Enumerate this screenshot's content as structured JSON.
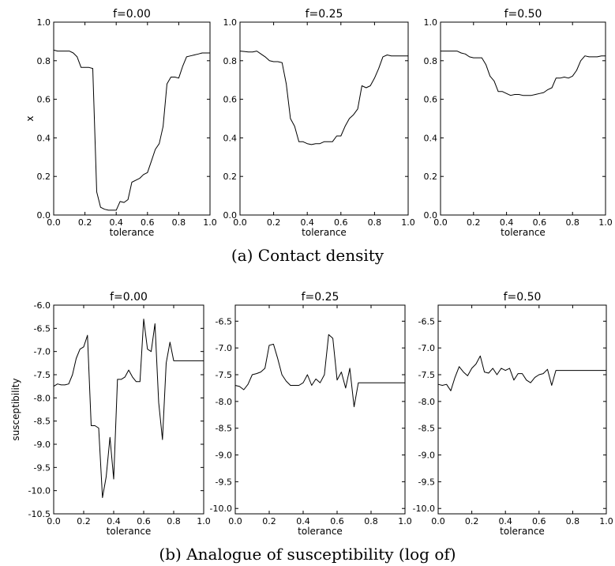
{
  "captions": {
    "top": "(a) Contact density",
    "bottom": "(b) Analogue of susceptibility (log of)"
  },
  "chart_data": [
    {
      "type": "line",
      "title": "f=0.00",
      "xlabel": "tolerance",
      "ylabel": "x",
      "xlim": [
        0,
        1
      ],
      "ylim": [
        0,
        1
      ],
      "xticks": [
        "0.0",
        "0.2",
        "0.4",
        "0.6",
        "0.8",
        "1.0"
      ],
      "yticks": [
        "0.0",
        "0.2",
        "0.4",
        "0.6",
        "0.8",
        "1.0"
      ],
      "series": [
        {
          "x": [
            0,
            0.025,
            0.05,
            0.075,
            0.1,
            0.125,
            0.15,
            0.175,
            0.2,
            0.225,
            0.25,
            0.275,
            0.3,
            0.325,
            0.35,
            0.375,
            0.4,
            0.425,
            0.45,
            0.475,
            0.5,
            0.525,
            0.55,
            0.575,
            0.6,
            0.625,
            0.65,
            0.675,
            0.7,
            0.725,
            0.75,
            0.775,
            0.8,
            0.825,
            0.85,
            0.875,
            0.9,
            0.925,
            0.95,
            0.975,
            1
          ],
          "y": [
            0.855,
            0.85,
            0.85,
            0.85,
            0.85,
            0.84,
            0.82,
            0.765,
            0.765,
            0.765,
            0.76,
            0.12,
            0.04,
            0.03,
            0.025,
            0.025,
            0.025,
            0.07,
            0.065,
            0.08,
            0.17,
            0.18,
            0.19,
            0.21,
            0.22,
            0.28,
            0.34,
            0.37,
            0.46,
            0.68,
            0.715,
            0.715,
            0.71,
            0.77,
            0.82,
            0.825,
            0.83,
            0.835,
            0.84,
            0.84,
            0.84
          ]
        }
      ]
    },
    {
      "type": "line",
      "title": "f=0.25",
      "xlabel": "tolerance",
      "ylabel": "",
      "xlim": [
        0,
        1
      ],
      "ylim": [
        0,
        1
      ],
      "xticks": [
        "0.0",
        "0.2",
        "0.4",
        "0.6",
        "0.8",
        "1.0"
      ],
      "yticks": [
        "0.0",
        "0.2",
        "0.4",
        "0.6",
        "0.8",
        "1.0"
      ],
      "series": [
        {
          "x": [
            0,
            0.025,
            0.05,
            0.075,
            0.1,
            0.125,
            0.15,
            0.175,
            0.2,
            0.225,
            0.25,
            0.275,
            0.3,
            0.325,
            0.35,
            0.375,
            0.4,
            0.425,
            0.45,
            0.475,
            0.5,
            0.525,
            0.55,
            0.575,
            0.6,
            0.625,
            0.65,
            0.675,
            0.7,
            0.725,
            0.75,
            0.775,
            0.8,
            0.825,
            0.85,
            0.875,
            0.9,
            0.925,
            0.95,
            0.975,
            1
          ],
          "y": [
            0.85,
            0.848,
            0.845,
            0.845,
            0.85,
            0.835,
            0.82,
            0.8,
            0.795,
            0.795,
            0.79,
            0.68,
            0.5,
            0.46,
            0.38,
            0.38,
            0.37,
            0.365,
            0.37,
            0.37,
            0.38,
            0.38,
            0.38,
            0.41,
            0.41,
            0.46,
            0.5,
            0.52,
            0.55,
            0.67,
            0.66,
            0.67,
            0.71,
            0.76,
            0.82,
            0.83,
            0.825,
            0.825,
            0.825,
            0.825,
            0.825
          ]
        }
      ]
    },
    {
      "type": "line",
      "title": "f=0.50",
      "xlabel": "tolerance",
      "ylabel": "",
      "xlim": [
        0,
        1
      ],
      "ylim": [
        0,
        1
      ],
      "xticks": [
        "0.0",
        "0.2",
        "0.4",
        "0.6",
        "0.8",
        "1.0"
      ],
      "yticks": [
        "0.0",
        "0.2",
        "0.4",
        "0.6",
        "0.8",
        "1.0"
      ],
      "series": [
        {
          "x": [
            0,
            0.025,
            0.05,
            0.075,
            0.1,
            0.125,
            0.15,
            0.175,
            0.2,
            0.225,
            0.25,
            0.275,
            0.3,
            0.325,
            0.35,
            0.375,
            0.4,
            0.425,
            0.45,
            0.475,
            0.5,
            0.525,
            0.55,
            0.575,
            0.6,
            0.625,
            0.65,
            0.675,
            0.7,
            0.725,
            0.75,
            0.775,
            0.8,
            0.825,
            0.85,
            0.875,
            0.9,
            0.925,
            0.95,
            0.975,
            1
          ],
          "y": [
            0.85,
            0.85,
            0.85,
            0.85,
            0.85,
            0.84,
            0.835,
            0.82,
            0.815,
            0.815,
            0.815,
            0.78,
            0.72,
            0.695,
            0.64,
            0.64,
            0.63,
            0.62,
            0.625,
            0.625,
            0.62,
            0.62,
            0.62,
            0.625,
            0.63,
            0.635,
            0.65,
            0.66,
            0.71,
            0.71,
            0.715,
            0.71,
            0.72,
            0.75,
            0.8,
            0.825,
            0.82,
            0.82,
            0.82,
            0.825,
            0.825
          ]
        }
      ]
    },
    {
      "type": "line",
      "title": "f=0.00",
      "xlabel": "tolerance",
      "ylabel": "susceptibility",
      "xlim": [
        0,
        1
      ],
      "ylim": [
        -10.5,
        -6.0
      ],
      "xticks": [
        "0.0",
        "0.2",
        "0.4",
        "0.6",
        "0.8",
        "1.0"
      ],
      "yticks": [
        "-6.0",
        "-6.5",
        "-7.0",
        "-7.5",
        "-8.0",
        "-8.5",
        "-9.0",
        "-9.5",
        "-10.0",
        "-10.5"
      ],
      "series": [
        {
          "x": [
            0,
            0.025,
            0.05,
            0.075,
            0.1,
            0.125,
            0.15,
            0.175,
            0.2,
            0.225,
            0.25,
            0.275,
            0.3,
            0.325,
            0.35,
            0.375,
            0.4,
            0.425,
            0.45,
            0.475,
            0.5,
            0.525,
            0.55,
            0.575,
            0.6,
            0.625,
            0.65,
            0.675,
            0.7,
            0.725,
            0.75,
            0.775,
            0.8,
            0.825,
            0.85,
            0.875,
            0.9,
            0.925,
            0.95,
            0.975,
            1
          ],
          "y": [
            -7.75,
            -7.7,
            -7.72,
            -7.72,
            -7.7,
            -7.5,
            -7.15,
            -6.95,
            -6.9,
            -6.65,
            -8.6,
            -8.6,
            -8.65,
            -10.15,
            -9.7,
            -8.85,
            -9.75,
            -7.6,
            -7.6,
            -7.55,
            -7.4,
            -7.55,
            -7.65,
            -7.65,
            -6.3,
            -6.95,
            -7.0,
            -6.4,
            -8.1,
            -8.9,
            -7.25,
            -6.8,
            -7.2,
            -7.2,
            -7.2,
            -7.2,
            -7.2,
            -7.2,
            -7.2,
            -7.2,
            -7.2
          ]
        }
      ]
    },
    {
      "type": "line",
      "title": "f=0.25",
      "xlabel": "tolerance",
      "ylabel": "",
      "xlim": [
        0,
        1
      ],
      "ylim": [
        -10.1,
        -6.2
      ],
      "xticks": [
        "0.0",
        "0.2",
        "0.4",
        "0.6",
        "0.8",
        "1.0"
      ],
      "yticks": [
        "-6.5",
        "-7.0",
        "-7.5",
        "-8.0",
        "-8.5",
        "-9.0",
        "-9.5",
        "-10.0"
      ],
      "series": [
        {
          "x": [
            0,
            0.025,
            0.05,
            0.075,
            0.1,
            0.125,
            0.15,
            0.175,
            0.2,
            0.225,
            0.25,
            0.275,
            0.3,
            0.325,
            0.35,
            0.375,
            0.4,
            0.425,
            0.45,
            0.475,
            0.5,
            0.525,
            0.55,
            0.575,
            0.6,
            0.625,
            0.65,
            0.675,
            0.7,
            0.725,
            0.75,
            0.775,
            0.8,
            0.825,
            0.85,
            0.875,
            0.9,
            0.925,
            0.95,
            0.975,
            1
          ],
          "y": [
            -7.7,
            -7.72,
            -7.78,
            -7.68,
            -7.5,
            -7.48,
            -7.45,
            -7.38,
            -6.95,
            -6.93,
            -7.2,
            -7.5,
            -7.62,
            -7.7,
            -7.7,
            -7.7,
            -7.65,
            -7.5,
            -7.7,
            -7.58,
            -7.65,
            -7.5,
            -6.75,
            -6.82,
            -7.6,
            -7.45,
            -7.75,
            -7.38,
            -8.1,
            -7.65,
            -7.65,
            -7.65,
            -7.65,
            -7.65,
            -7.65,
            -7.65,
            -7.65,
            -7.65,
            -7.65,
            -7.65,
            -7.65
          ]
        }
      ]
    },
    {
      "type": "line",
      "title": "f=0.50",
      "xlabel": "tolerance",
      "ylabel": "",
      "xlim": [
        0,
        1
      ],
      "ylim": [
        -10.1,
        -6.2
      ],
      "xticks": [
        "0.0",
        "0.2",
        "0.4",
        "0.6",
        "0.8",
        "1.0"
      ],
      "yticks": [
        "-6.5",
        "-7.0",
        "-7.5",
        "-8.0",
        "-8.5",
        "-9.0",
        "-9.5",
        "-10.0"
      ],
      "series": [
        {
          "x": [
            0,
            0.025,
            0.05,
            0.075,
            0.1,
            0.125,
            0.15,
            0.175,
            0.2,
            0.225,
            0.25,
            0.275,
            0.3,
            0.325,
            0.35,
            0.375,
            0.4,
            0.425,
            0.45,
            0.475,
            0.5,
            0.525,
            0.55,
            0.575,
            0.6,
            0.625,
            0.65,
            0.675,
            0.7,
            0.725,
            0.75,
            0.775,
            0.8,
            0.825,
            0.85,
            0.875,
            0.9,
            0.925,
            0.95,
            0.975,
            1
          ],
          "y": [
            -7.68,
            -7.7,
            -7.68,
            -7.8,
            -7.55,
            -7.35,
            -7.45,
            -7.52,
            -7.38,
            -7.3,
            -7.15,
            -7.45,
            -7.47,
            -7.38,
            -7.5,
            -7.38,
            -7.42,
            -7.38,
            -7.6,
            -7.48,
            -7.48,
            -7.6,
            -7.65,
            -7.55,
            -7.5,
            -7.48,
            -7.4,
            -7.7,
            -7.42,
            -7.42,
            -7.42,
            -7.42,
            -7.42,
            -7.42,
            -7.42,
            -7.42,
            -7.42,
            -7.42,
            -7.42,
            -7.42,
            -7.42
          ]
        }
      ]
    }
  ]
}
